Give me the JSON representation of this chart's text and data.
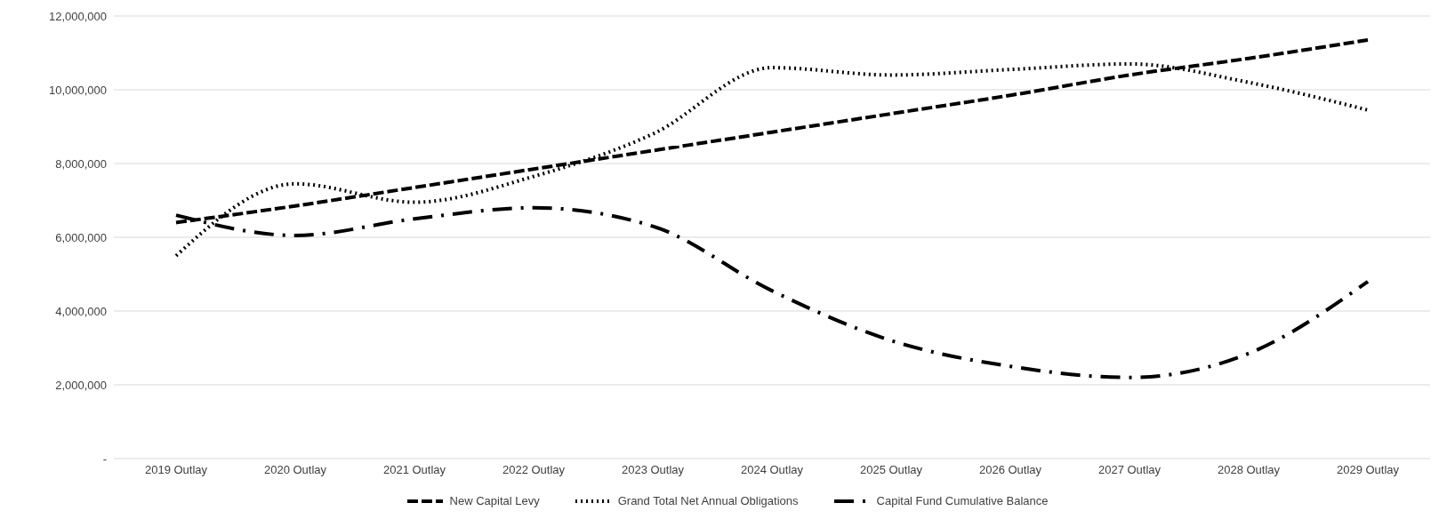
{
  "chart_data": {
    "type": "line",
    "categories": [
      "2019 Outlay",
      "2020 Outlay",
      "2021 Outlay",
      "2022 Outlay",
      "2023 Outlay",
      "2024 Outlay",
      "2025 Outlay",
      "2026 Outlay",
      "2027 Outlay",
      "2028 Outlay",
      "2029 Outlay"
    ],
    "series": [
      {
        "name": "New Capital Levy",
        "color": "#000000",
        "line_style": "dashed",
        "values": [
          6400000,
          6850000,
          7350000,
          7850000,
          8350000,
          8850000,
          9350000,
          9850000,
          10400000,
          10850000,
          11350000
        ]
      },
      {
        "name": "Grand Total Net Annual Obligations",
        "color": "#000000",
        "line_style": "dotted",
        "values": [
          5500000,
          7450000,
          6950000,
          7650000,
          8800000,
          10600000,
          10400000,
          10550000,
          10700000,
          10200000,
          9450000
        ]
      },
      {
        "name": "Capital Fund Cumulative Balance",
        "color": "#000000",
        "line_style": "dashed",
        "values": [
          6600000,
          6050000,
          6500000,
          6800000,
          6300000,
          4550000,
          3200000,
          2500000,
          2200000,
          2850000,
          4800000
        ]
      }
    ],
    "ylim": [
      0,
      12000000
    ],
    "yticks": [
      {
        "value": 0,
        "label": "-"
      },
      {
        "value": 2000000,
        "label": "2,000,000"
      },
      {
        "value": 4000000,
        "label": "4,000,000"
      },
      {
        "value": 6000000,
        "label": "6,000,000"
      },
      {
        "value": 8000000,
        "label": "8,000,000"
      },
      {
        "value": 10000000,
        "label": "10,000,000"
      },
      {
        "value": 12000000,
        "label": "12,000,000"
      }
    ],
    "grid": "y",
    "legend": "bottom",
    "marker": "none"
  }
}
